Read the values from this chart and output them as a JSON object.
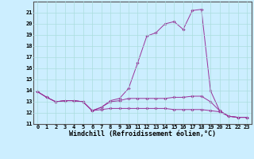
{
  "title": "",
  "xlabel": "Windchill (Refroidissement éolien,°C)",
  "ylabel": "",
  "background_color": "#cceeff",
  "line_color": "#993399",
  "xlim": [
    -0.5,
    23.5
  ],
  "ylim": [
    11,
    22
  ],
  "yticks": [
    11,
    12,
    13,
    14,
    15,
    16,
    17,
    18,
    19,
    20,
    21
  ],
  "xticks": [
    0,
    1,
    2,
    3,
    4,
    5,
    6,
    7,
    8,
    9,
    10,
    11,
    12,
    13,
    14,
    15,
    16,
    17,
    18,
    19,
    20,
    21,
    22,
    23
  ],
  "series": [
    [
      13.9,
      13.4,
      13.0,
      13.1,
      13.1,
      13.0,
      12.2,
      12.5,
      13.1,
      13.3,
      14.2,
      16.5,
      18.9,
      19.2,
      20.0,
      20.2,
      19.5,
      21.2,
      21.3,
      14.0,
      12.2,
      11.7,
      11.6,
      11.6
    ],
    [
      13.9,
      13.4,
      13.0,
      13.1,
      13.1,
      13.0,
      12.2,
      12.5,
      13.0,
      13.1,
      13.3,
      13.3,
      13.3,
      13.3,
      13.3,
      13.4,
      13.4,
      13.5,
      13.5,
      13.0,
      12.2,
      11.7,
      11.6,
      11.6
    ],
    [
      13.9,
      13.4,
      13.0,
      13.1,
      13.1,
      13.0,
      12.2,
      12.3,
      12.4,
      12.4,
      12.4,
      12.4,
      12.4,
      12.4,
      12.4,
      12.3,
      12.3,
      12.3,
      12.3,
      12.2,
      12.1,
      11.7,
      11.6,
      11.6
    ]
  ],
  "grid_color": "#aadddd",
  "tick_fontsize": 5.0,
  "xlabel_fontsize": 6.0,
  "marker": "D",
  "marker_size": 1.8,
  "linewidth": 0.7
}
